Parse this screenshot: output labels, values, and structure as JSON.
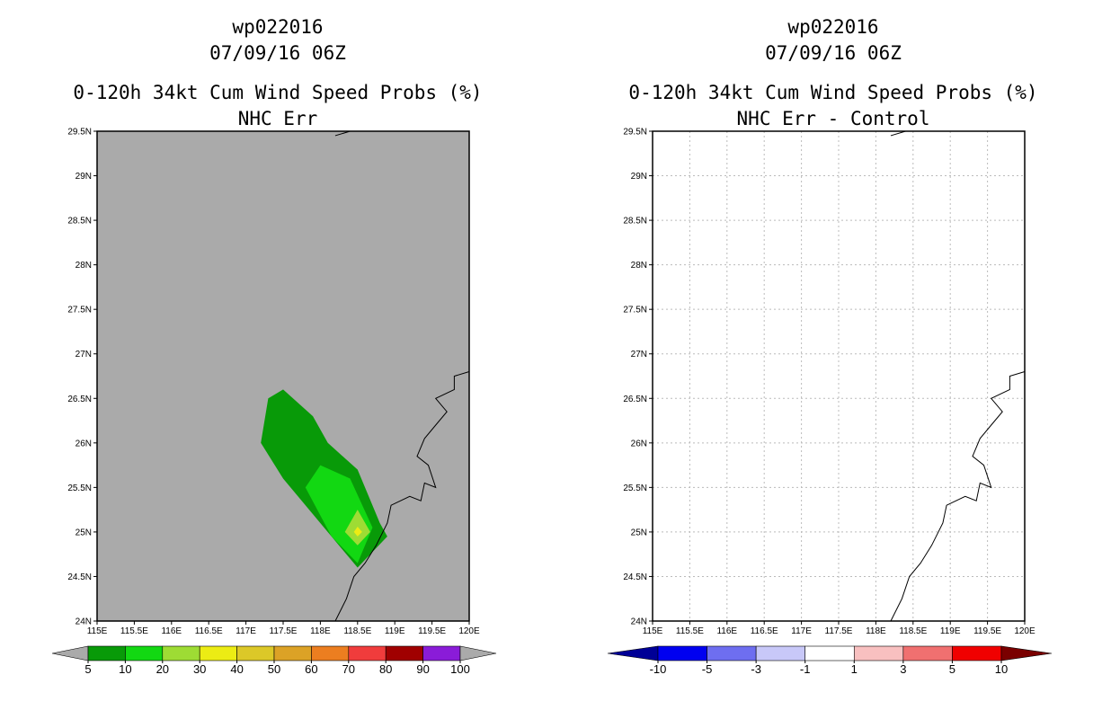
{
  "chart_data": [
    {
      "type": "heatmap",
      "storm_id": "wp022016",
      "datetime": "07/09/16 06Z",
      "title": "0-120h 34kt Cum Wind Speed Probs (%)",
      "subtitle": "NHC Err",
      "xlim": [
        115,
        120
      ],
      "ylim": [
        24,
        29.5
      ],
      "x_ticks": [
        "115E",
        "115.5E",
        "116E",
        "116.5E",
        "117E",
        "117.5E",
        "118E",
        "118.5E",
        "119E",
        "119.5E",
        "120E"
      ],
      "y_ticks": [
        "24N",
        "24.5N",
        "25N",
        "25.5N",
        "26N",
        "26.5N",
        "27N",
        "27.5N",
        "28N",
        "28.5N",
        "29N",
        "29.5N"
      ],
      "background": "#aaaaaa",
      "colorbar": {
        "labels": [
          "5",
          "10",
          "20",
          "30",
          "40",
          "50",
          "60",
          "70",
          "80",
          "90",
          "100"
        ],
        "colors": [
          "#aaaaaa",
          "#089a08",
          "#12d812",
          "#9edc34",
          "#ecec14",
          "#dcc828",
          "#dca226",
          "#ec7e20",
          "#f03c3c",
          "#a00000",
          "#8a1cd8",
          "#aaaaaa"
        ]
      },
      "contours": [
        {
          "level": "5-10%",
          "color": "#089a08",
          "points": [
            [
              117.3,
              26.5
            ],
            [
              117.5,
              26.6
            ],
            [
              117.9,
              26.3
            ],
            [
              118.1,
              26.0
            ],
            [
              118.5,
              25.7
            ],
            [
              118.8,
              25.1
            ],
            [
              118.9,
              24.95
            ],
            [
              118.5,
              24.6
            ],
            [
              118.3,
              24.8
            ],
            [
              117.9,
              25.2
            ],
            [
              117.5,
              25.6
            ],
            [
              117.2,
              26.0
            ]
          ]
        },
        {
          "level": "10-20%",
          "color": "#12d812",
          "points": [
            [
              117.8,
              25.5
            ],
            [
              118.0,
              25.75
            ],
            [
              118.4,
              25.6
            ],
            [
              118.7,
              25.05
            ],
            [
              118.5,
              24.65
            ],
            [
              118.15,
              24.95
            ]
          ]
        },
        {
          "level": "20-30%",
          "color": "#9edc34",
          "points": [
            [
              118.33,
              25.0
            ],
            [
              118.5,
              25.25
            ],
            [
              118.67,
              25.0
            ],
            [
              118.5,
              24.85
            ]
          ]
        },
        {
          "level": "30-40%",
          "color": "#ecec14",
          "points": [
            [
              118.45,
              25.0
            ],
            [
              118.5,
              25.06
            ],
            [
              118.56,
              25.0
            ],
            [
              118.5,
              24.95
            ]
          ]
        }
      ]
    },
    {
      "type": "heatmap",
      "storm_id": "wp022016",
      "datetime": "07/09/16 06Z",
      "title": "0-120h 34kt Cum Wind Speed Probs (%)",
      "subtitle": "NHC Err - Control",
      "xlim": [
        115,
        120
      ],
      "ylim": [
        24,
        29.5
      ],
      "x_ticks": [
        "115E",
        "115.5E",
        "116E",
        "116.5E",
        "117E",
        "117.5E",
        "118E",
        "118.5E",
        "119E",
        "119.5E",
        "120E"
      ],
      "y_ticks": [
        "24N",
        "24.5N",
        "25N",
        "25.5N",
        "26N",
        "26.5N",
        "27N",
        "27.5N",
        "28N",
        "28.5N",
        "29N",
        "29.5N"
      ],
      "background": "#ffffff",
      "grid": true,
      "colorbar": {
        "labels": [
          "-10",
          "-5",
          "-3",
          "-1",
          "1",
          "3",
          "5",
          "10"
        ],
        "colors": [
          "#000096",
          "#0000f0",
          "#6e6ef0",
          "#c8c8f8",
          "#ffffff",
          "#f8c0c0",
          "#f07070",
          "#f00000",
          "#7a0000"
        ]
      },
      "contours": []
    }
  ],
  "coastline": [
    [
      118.2,
      24.0
    ],
    [
      118.35,
      24.25
    ],
    [
      118.45,
      24.5
    ],
    [
      118.6,
      24.65
    ],
    [
      118.75,
      24.85
    ],
    [
      118.9,
      25.1
    ],
    [
      118.95,
      25.3
    ],
    [
      119.2,
      25.4
    ],
    [
      119.35,
      25.35
    ],
    [
      119.4,
      25.55
    ],
    [
      119.55,
      25.5
    ],
    [
      119.45,
      25.75
    ],
    [
      119.3,
      25.85
    ],
    [
      119.4,
      26.05
    ],
    [
      119.55,
      26.2
    ],
    [
      119.7,
      26.35
    ],
    [
      119.55,
      26.5
    ],
    [
      119.8,
      26.6
    ],
    [
      119.8,
      26.75
    ],
    [
      120.0,
      26.8
    ]
  ]
}
